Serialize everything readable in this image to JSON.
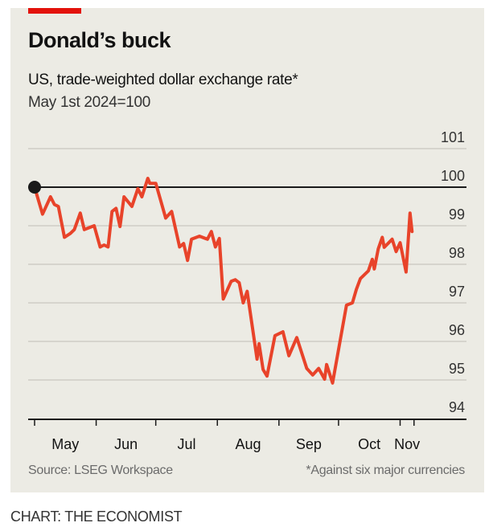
{
  "header": {
    "title": "Donald’s buck",
    "subtitle": "US, trade-weighted dollar exchange rate*",
    "unit": "May 1st 2024=100"
  },
  "footer": {
    "source": "Source: LSEG Workspace",
    "note": "*Against six major currencies",
    "credit": "CHART: THE ECONOMIST"
  },
  "colors": {
    "line": "#e8432a",
    "accent": "#e3120b",
    "background": "#ecebe4",
    "grid": "#cfcdc5"
  },
  "chart_data": {
    "type": "line",
    "title": "Donald’s buck",
    "subtitle": "US, trade-weighted dollar exchange rate*",
    "ylabel": "May 1st 2024=100",
    "xlabel": "",
    "x_unit": "days since May 1st 2024",
    "ylim": [
      94,
      101
    ],
    "yticks": [
      "94",
      "95",
      "96",
      "97",
      "98",
      "99",
      "100",
      "101"
    ],
    "xlim": [
      0,
      191
    ],
    "x_ticks": [
      0,
      31,
      61,
      92,
      123,
      153,
      184,
      191
    ],
    "x_tick_labels": [
      {
        "label": "May",
        "at": 15.5
      },
      {
        "label": "Jun",
        "at": 46
      },
      {
        "label": "Jul",
        "at": 76.5
      },
      {
        "label": "Aug",
        "at": 107.5
      },
      {
        "label": "Sep",
        "at": 138
      },
      {
        "label": "Oct",
        "at": 168.5
      },
      {
        "label": "Nov",
        "at": 187.5
      }
    ],
    "reference_line": 100,
    "grid": true,
    "series": [
      {
        "name": "Trade-weighted dollar",
        "x": [
          0,
          4,
          8,
          10,
          12,
          15,
          18,
          20,
          23,
          25,
          30,
          33,
          35,
          37,
          39,
          41,
          43,
          45,
          49,
          52,
          54,
          57,
          58,
          61,
          66,
          69,
          73,
          75,
          77,
          79,
          83,
          87,
          89,
          91,
          93,
          95,
          99,
          101,
          103,
          105,
          107,
          112,
          113,
          115,
          117,
          121,
          125,
          128,
          132,
          137,
          140,
          143,
          146,
          147,
          150,
          157,
          160,
          162,
          164,
          168,
          170,
          171,
          173,
          175,
          176,
          180,
          182,
          184,
          187,
          189,
          190
        ],
        "values": [
          100,
          99.3,
          99.75,
          99.55,
          99.5,
          98.7,
          98.8,
          98.9,
          99.33,
          98.9,
          99.0,
          98.45,
          98.5,
          98.45,
          99.37,
          99.45,
          98.98,
          99.75,
          99.5,
          99.96,
          99.75,
          100.23,
          100.1,
          100.1,
          99.2,
          99.37,
          98.45,
          98.54,
          98.1,
          98.65,
          98.73,
          98.65,
          98.85,
          98.45,
          98.67,
          97.1,
          97.56,
          97.6,
          97.52,
          97.0,
          97.3,
          95.54,
          95.94,
          95.27,
          95.1,
          96.15,
          96.25,
          95.63,
          96.1,
          95.3,
          95.13,
          95.3,
          95.02,
          95.4,
          94.92,
          96.94,
          97.0,
          97.35,
          97.63,
          97.83,
          98.13,
          97.88,
          98.4,
          98.7,
          98.44,
          98.65,
          98.33,
          98.56,
          97.8,
          99.33,
          98.85
        ]
      }
    ]
  }
}
